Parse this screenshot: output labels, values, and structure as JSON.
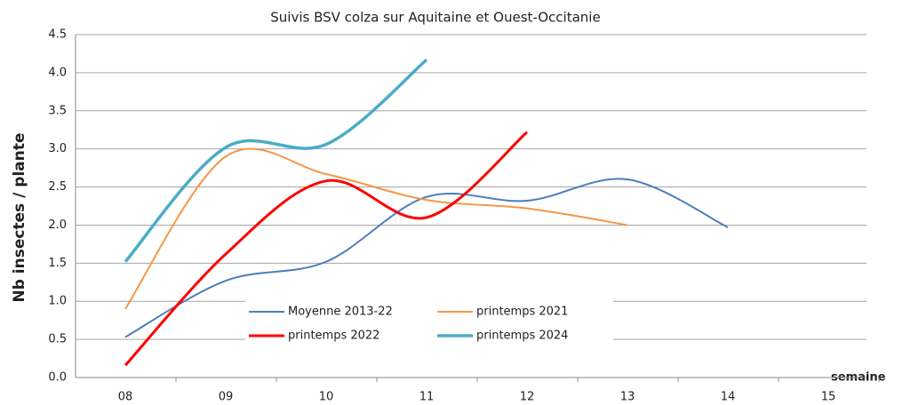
{
  "chart_data": {
    "type": "line",
    "title": "Suivis BSV colza sur Aquitaine et Ouest-Occitanie",
    "y_label": "Nb insectes / plante",
    "x_label": "semaine",
    "categories": [
      "08",
      "09",
      "10",
      "11",
      "12",
      "13",
      "14",
      "15"
    ],
    "series": [
      {
        "name": "Moyenne 2013-22",
        "color": "#4a7ebb",
        "values": [
          0.53,
          1.27,
          1.52,
          2.37,
          2.32,
          2.6,
          1.97,
          null
        ]
      },
      {
        "name": "printemps 2021",
        "color": "#f79646",
        "values": [
          0.9,
          2.9,
          2.67,
          2.33,
          2.22,
          2.0,
          null,
          null
        ]
      },
      {
        "name": "printemps 2022",
        "color": "#ff0000",
        "values": [
          0.16,
          1.62,
          2.58,
          2.1,
          3.22,
          null,
          null,
          null
        ]
      },
      {
        "name": "printemps 2024",
        "color": "#4bacc6",
        "values": [
          1.52,
          3.02,
          3.06,
          4.17,
          null,
          null,
          null,
          null
        ]
      }
    ],
    "ylim": [
      0,
      4.5
    ],
    "yticks": [
      {
        "value": 0,
        "label": "0.0"
      },
      0.5,
      {
        "value": 1,
        "label": "1.0"
      },
      1.5,
      {
        "value": 2,
        "label": "2.0"
      },
      2.5,
      {
        "value": 3,
        "label": "3.0"
      },
      3.5,
      {
        "value": 4,
        "label": "4.0"
      },
      4.5
    ],
    "grid": true
  }
}
